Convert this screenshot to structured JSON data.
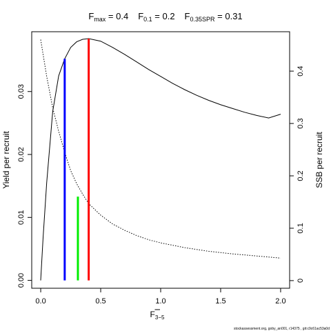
{
  "chart_data": {
    "type": "line",
    "title": {
      "fmax_label": "F",
      "fmax_sub": "max",
      "fmax_value": " = 0.4",
      "f01_label": "F",
      "f01_sub": "0.1",
      "f01_value": " = 0.2",
      "fspr_label": "F",
      "fspr_sub": "0.35SPR",
      "fspr_value": " = 0.31"
    },
    "xlabel": "F",
    "xlabel_sub": "3−5",
    "ylabel": "Yield per recruit",
    "y2label": "SSB per recruit",
    "xlim": [
      -0.075,
      2.075
    ],
    "ylim": [
      -0.00125,
      0.0395
    ],
    "y2lim": [
      -0.0146,
      0.4752
    ],
    "xticks": [
      0,
      0.5,
      1,
      1.5,
      2
    ],
    "xtick_labels": [
      "0.0",
      "0.5",
      "1.0",
      "1.5",
      "2.0"
    ],
    "yticks": [
      0,
      0.01,
      0.02,
      0.03
    ],
    "ytick_labels": [
      "0.00",
      "0.01",
      "0.02",
      "0.03"
    ],
    "y2ticks": [
      0,
      0.1,
      0.2,
      0.3,
      0.4
    ],
    "y2tick_labels": [
      "0",
      "0.1",
      "0.2",
      "0.3",
      "0.4"
    ],
    "series": [
      {
        "role": "yield",
        "axis": "left",
        "style": "solid",
        "color": "#000000",
        "x": [
          0,
          0.02,
          0.05,
          0.1,
          0.15,
          0.2,
          0.25,
          0.3,
          0.35,
          0.4,
          0.5,
          0.6,
          0.7,
          0.8,
          0.9,
          1.0,
          1.1,
          1.2,
          1.3,
          1.4,
          1.5,
          1.6,
          1.7,
          1.8,
          1.9,
          2.0
        ],
        "y": [
          0,
          0.0068,
          0.0155,
          0.0268,
          0.0325,
          0.0352,
          0.037,
          0.0379,
          0.0383,
          0.0384,
          0.038,
          0.037,
          0.0359,
          0.0347,
          0.0335,
          0.0324,
          0.0313,
          0.0303,
          0.0294,
          0.0286,
          0.0279,
          0.0273,
          0.0267,
          0.0262,
          0.0258,
          0.0264
        ]
      },
      {
        "role": "ssb",
        "axis": "right",
        "style": "dotted",
        "color": "#000000",
        "x": [
          0,
          0.05,
          0.1,
          0.15,
          0.2,
          0.25,
          0.3,
          0.35,
          0.4,
          0.5,
          0.6,
          0.7,
          0.8,
          0.9,
          1.0,
          1.2,
          1.4,
          1.6,
          1.8,
          2.0
        ],
        "y": [
          0.46,
          0.39,
          0.33,
          0.285,
          0.245,
          0.21,
          0.185,
          0.165,
          0.147,
          0.125,
          0.108,
          0.096,
          0.086,
          0.078,
          0.072,
          0.063,
          0.056,
          0.051,
          0.047,
          0.043
        ]
      }
    ],
    "reference_lines": [
      {
        "role": "f01",
        "x": 0.2,
        "y_top": 0.0352,
        "color": "#0000ff"
      },
      {
        "role": "fspr",
        "x": 0.31,
        "y_top": 0.0133,
        "color": "#00ee00"
      },
      {
        "role": "fmax",
        "x": 0.4,
        "y_top": 0.0384,
        "color": "#ff0000"
      }
    ]
  },
  "footer": "stockassessment.org, goby_an001, r14375 , git:c9c61ac53a0d"
}
